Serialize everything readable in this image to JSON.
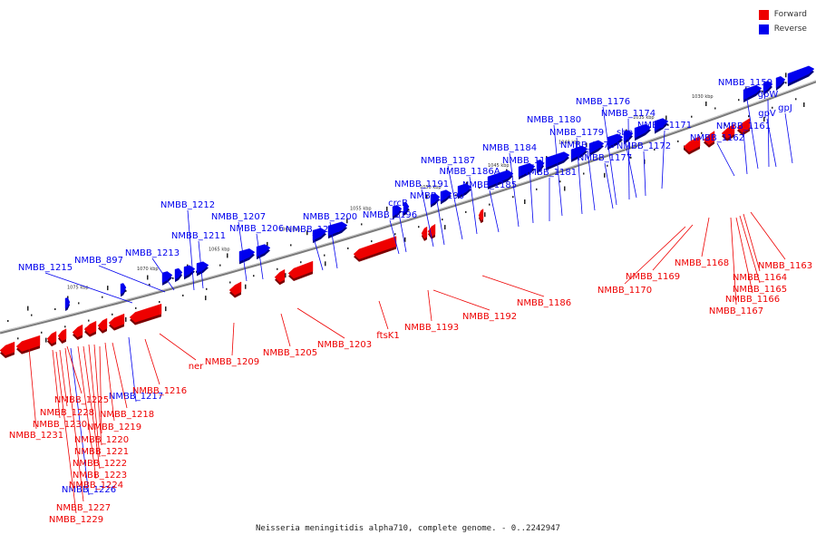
{
  "legend": [
    {
      "label": "Forward",
      "color": "#ee0000"
    },
    {
      "label": "Reverse",
      "color": "#0000ee"
    }
  ],
  "caption": "Neisseria meningitidis alpha710, complete genome. - 0..2242947",
  "colors": {
    "forward": "#ee0000",
    "reverse": "#0000ee",
    "axis": "#888888"
  },
  "ticks": [
    "1030 kbp",
    "1035 kbp",
    "1040 kbp",
    "1045 kbp",
    "1050 kbp",
    "1055 kbp",
    "1060 kbp",
    "1065 kbp",
    "1070 kbp",
    "1075 kbp"
  ],
  "reverse_labels": [
    "NMBB_1159",
    "gpW",
    "gpV",
    "gpJ",
    "NMBB_1161",
    "NMBB_1162",
    "NMBB_1171",
    "NMBB_1172",
    "sbp",
    "NMBB_1174",
    "NMBB_1176",
    "NMBB_1177",
    "NMBB_1178",
    "NMBB_1179",
    "NMBB_1180",
    "NMBB_1181",
    "NMBB_1182",
    "NMBB_1184",
    "NMBB_1185",
    "NMBB_1186A",
    "NMBB_1187",
    "NMBB_1190",
    "NMBB_1191",
    "crcB",
    "NMBB_1196",
    "NMBB_1200",
    "NMBB_1201",
    "NMBB_1206",
    "NMBB_1207",
    "NMBB_1211",
    "NMBB_1212",
    "NMBB_1213",
    "NMBB_897",
    "NMBB_1215",
    "NMBB_1217",
    "NMBB_1226"
  ],
  "forward_labels": [
    "NMBB_1163",
    "NMBB_1164",
    "NMBB_1165",
    "NMBB_1166",
    "NMBB_1167",
    "NMBB_1168",
    "NMBB_1169",
    "NMBB_1170",
    "NMBB_1186",
    "NMBB_1192",
    "NMBB_1193",
    "ftsK1",
    "NMBB_1203",
    "NMBB_1205",
    "NMBB_1209",
    "ner",
    "NMBB_1216",
    "NMBB_1218",
    "NMBB_1219",
    "NMBB_1220",
    "NMBB_1221",
    "NMBB_1222",
    "NMBB_1223",
    "NMBB_1224",
    "NMBB_1225",
    "NMBB_1227",
    "NMBB_1228",
    "NMBB_1229",
    "NMBB_1230",
    "NMBB_1231"
  ]
}
